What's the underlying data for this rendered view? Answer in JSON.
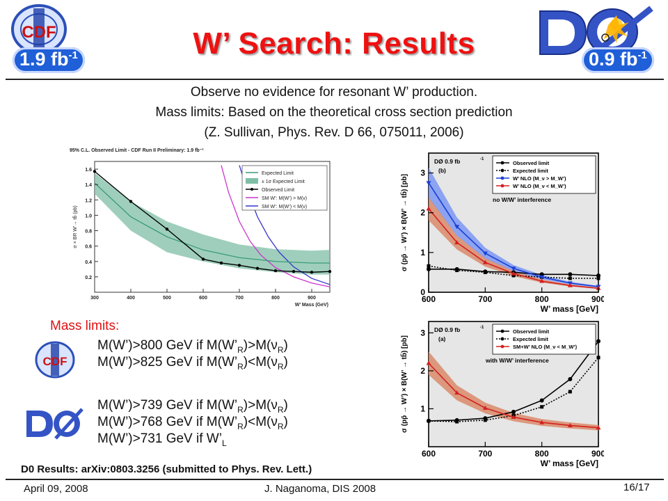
{
  "slide": {
    "title": "W’ Search: Results",
    "cdf_badge": "1.9 fb",
    "d0_badge": "0.9 fb",
    "badge_exp": "-1",
    "cdf_logo_text": "CDF",
    "intro": [
      "Observe no evidence for resonant W’ production.",
      "Mass limits: Based on the theoretical cross section prediction",
      "(Z. Sullivan, Phys. Rev. D 66, 075011, 2006)"
    ],
    "mass_limits_heading": "Mass limits:",
    "cdf_limits": [
      {
        "pre": "M(W’)>800 GeV if M(W’",
        "sub": "R",
        "post": ")>M(ν",
        "sub2": "R",
        "end": ")"
      },
      {
        "pre": "M(W’)>825 GeV if M(W’",
        "sub": "R",
        "post": ")<M(ν",
        "sub2": "R",
        "end": ")"
      }
    ],
    "d0_limits": [
      {
        "pre": "M(W’)>739 GeV if M(W’",
        "sub": "R",
        "post": ")>M(ν",
        "sub2": "R",
        "end": ")"
      },
      {
        "pre": "M(W’)>768 GeV if M(W’",
        "sub": "R",
        "post": ")<M(ν",
        "sub2": "R",
        "end": ")"
      },
      {
        "pre": "M(W’)>731 GeV if W’",
        "sub": "L",
        "post": "",
        "sub2": "",
        "end": ""
      }
    ],
    "citation": "D0 Results: arXiv:0803.3256 (submitted to Phys. Rev. Lett.)",
    "footer_date": "April 09, 2008",
    "footer_author": "J. Naganoma, DIS 2008",
    "page": "16/17"
  },
  "chart_data": [
    {
      "type": "line",
      "title": "95% C.L. Observed Limit - CDF Run II Preliminary: 1.9 fb⁻¹",
      "xlabel": "W’ Mass (GeV)",
      "ylabel": "σ × BR W’→ tb̄ (pb)",
      "xlim": [
        300,
        950
      ],
      "ylim": [
        0,
        1.7
      ],
      "xticks": [
        300,
        400,
        500,
        600,
        700,
        800,
        900
      ],
      "yticks": [
        0.2,
        0.4,
        0.6,
        0.8,
        1.0,
        1.2,
        1.4,
        1.6
      ],
      "legend_position": "top-right",
      "legend": [
        "Expected Limit",
        "± 1σ Expected Limit",
        "Observed Limit",
        "SM W’: M(W’) > M(ν)",
        "SM W’: M(W’) < M(ν)"
      ],
      "series": [
        {
          "name": "Observed Limit",
          "color": "#000000",
          "x": [
            300,
            400,
            500,
            600,
            650,
            700,
            750,
            800,
            850,
            900,
            950
          ],
          "y": [
            1.57,
            1.18,
            0.82,
            0.43,
            0.38,
            0.35,
            0.31,
            0.28,
            0.27,
            0.26,
            0.27
          ]
        },
        {
          "name": "Expected Limit",
          "color": "#3a9a78",
          "x": [
            300,
            400,
            500,
            600,
            700,
            800,
            900,
            950
          ],
          "y": [
            1.42,
            0.98,
            0.72,
            0.55,
            0.45,
            0.4,
            0.38,
            0.38
          ]
        },
        {
          "name": "± 1σ Expected Limit",
          "color": "#7fbfa6",
          "x": [
            300,
            400,
            500,
            600,
            700,
            800,
            900,
            950
          ],
          "low": [
            1.28,
            0.8,
            0.52,
            0.4,
            0.31,
            0.26,
            0.23,
            0.23
          ],
          "high": [
            1.55,
            1.18,
            0.92,
            0.75,
            0.62,
            0.56,
            0.54,
            0.55
          ]
        },
        {
          "name": "SM W’: M(W’) > M(ν)",
          "color": "#cc33cc",
          "x": [
            650,
            670,
            700,
            730,
            760,
            800,
            850,
            900,
            950
          ],
          "y": [
            1.65,
            1.3,
            0.92,
            0.66,
            0.48,
            0.32,
            0.2,
            0.12,
            0.07
          ]
        },
        {
          "name": "SM W’: M(W’) < M(ν)",
          "color": "#3333cc",
          "x": [
            700,
            720,
            750,
            780,
            810,
            850,
            900,
            950
          ],
          "y": [
            1.65,
            1.35,
            0.98,
            0.72,
            0.52,
            0.33,
            0.18,
            0.1
          ]
        }
      ]
    },
    {
      "type": "line",
      "panel": "(b)",
      "experiment": "DØ 0.9 fb",
      "annotation": "no W/W’ interference",
      "xlabel": "W’ mass [GeV]",
      "ylabel": "σ (pp̄ → W’) × B(W’ → tb̄) [pb]",
      "xlim": [
        600,
        900
      ],
      "ylim": [
        0,
        3.5
      ],
      "xticks": [
        600,
        700,
        800,
        900
      ],
      "yticks": [
        0,
        1,
        2,
        3
      ],
      "legend_position": "top-right",
      "legend": [
        "Observed limit",
        "Expected limit",
        "W’ NLO (M_ν > M_W’)",
        "W’ NLO (M_ν < M_W’)"
      ],
      "series": [
        {
          "name": "Observed limit",
          "color": "#000000",
          "x": [
            600,
            650,
            700,
            750,
            800,
            850,
            900
          ],
          "y": [
            0.58,
            0.58,
            0.52,
            0.5,
            0.45,
            0.45,
            0.42
          ]
        },
        {
          "name": "Expected limit",
          "color": "#000000",
          "x": [
            600,
            650,
            700,
            750,
            800,
            850,
            900
          ],
          "y": [
            0.66,
            0.55,
            0.5,
            0.42,
            0.38,
            0.35,
            0.35
          ]
        },
        {
          "name": "W’ NLO (M_ν > M_W’)",
          "color": "#1a3fd6",
          "x": [
            600,
            650,
            700,
            750,
            800,
            850,
            900
          ],
          "y": [
            2.75,
            1.65,
            0.98,
            0.6,
            0.38,
            0.23,
            0.14
          ]
        },
        {
          "name": "W’ NLO (M_ν < M_W’)",
          "color": "#d42020",
          "x": [
            600,
            650,
            700,
            750,
            800,
            850,
            900
          ],
          "y": [
            2.1,
            1.25,
            0.75,
            0.47,
            0.28,
            0.17,
            0.1
          ]
        }
      ]
    },
    {
      "type": "line",
      "panel": "(a)",
      "experiment": "DØ 0.9 fb",
      "annotation": "with W/W’ interference",
      "xlabel": "W’ mass [GeV]",
      "ylabel": "σ (pp̄ → W’) × B(W’ → tb̄) [pb]",
      "xlim": [
        600,
        900
      ],
      "ylim": [
        0,
        3.3
      ],
      "xticks": [
        600,
        700,
        800,
        900
      ],
      "yticks": [
        1,
        2,
        3
      ],
      "legend_position": "top-right",
      "legend": [
        "Observed limit",
        "Expected limit",
        "SM+W’ NLO (M_ν < M_W’)"
      ],
      "series": [
        {
          "name": "Observed limit",
          "color": "#000000",
          "x": [
            600,
            650,
            700,
            750,
            800,
            850,
            900
          ],
          "y": [
            0.68,
            0.7,
            0.75,
            0.92,
            1.22,
            1.78,
            2.78
          ]
        },
        {
          "name": "Expected limit",
          "color": "#000000",
          "x": [
            600,
            650,
            700,
            750,
            800,
            850,
            900
          ],
          "y": [
            0.68,
            0.66,
            0.7,
            0.82,
            1.05,
            1.45,
            2.35
          ]
        },
        {
          "name": "SM+W’ NLO (M_ν < M_W’)",
          "color": "#d42020",
          "x": [
            600,
            650,
            700,
            750,
            800,
            850,
            900
          ],
          "y": [
            2.2,
            1.42,
            1.02,
            0.78,
            0.64,
            0.56,
            0.5
          ]
        }
      ]
    }
  ]
}
